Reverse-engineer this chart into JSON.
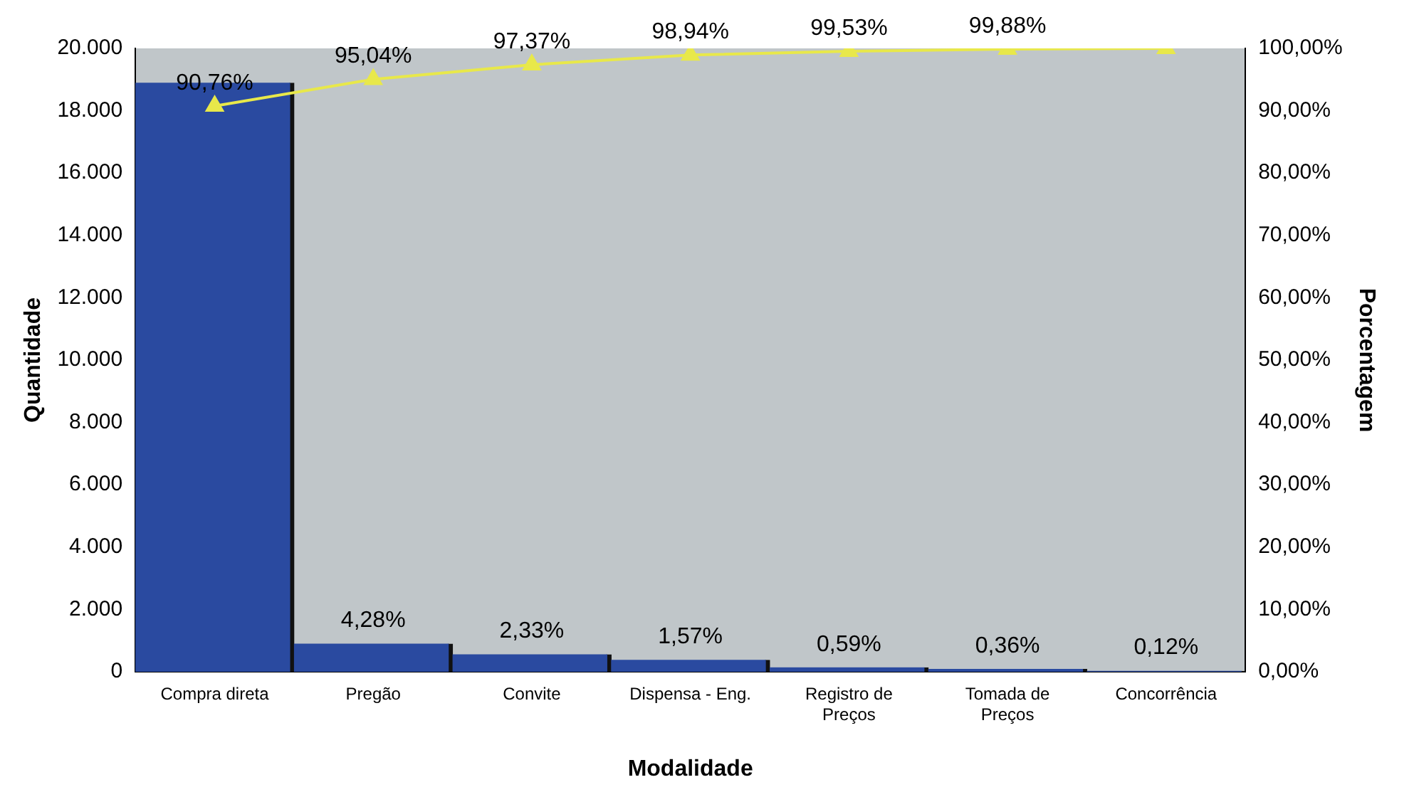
{
  "chart_data": {
    "type": "bar",
    "xlabel": "Modalidade",
    "ylabel": "Quantidade",
    "y2label": "Porcentagem",
    "categories": [
      "Compra direta",
      "Pregão",
      "Convite",
      "Dispensa - Eng.",
      "Registro de Preços",
      "Tomada de Preços",
      "Concorrência"
    ],
    "series": [
      {
        "color": "#2a4aa0",
        "values": [
          18900,
          900,
          560,
          380,
          140,
          90,
          30
        ]
      },
      {
        "type": "line",
        "axis": "y2",
        "color": "#e8e84a",
        "marker": "triangle",
        "values": [
          90.76,
          95.04,
          97.37,
          98.94,
          99.53,
          99.88,
          100
        ],
        "value_labels": [
          "90,76%",
          "95,04%",
          "97,37%",
          "98,94%",
          "99,53%",
          "99,88%",
          null
        ]
      }
    ],
    "annotations": [
      {
        "text": "4,28%",
        "x": "Pregão",
        "y": 900
      },
      {
        "text": "2,33%",
        "x": "Convite",
        "y": 560
      },
      {
        "text": "1,57%",
        "x": "Dispensa - Eng.",
        "y": 380
      },
      {
        "text": "0,59%",
        "x": "Registro de Preços",
        "y": 140
      },
      {
        "text": "0,36%",
        "x": "Tomada de Preços",
        "y": 90
      },
      {
        "text": "0,12%",
        "x": "Concorrência",
        "y": 30
      }
    ],
    "ylim": [
      0,
      20000
    ],
    "yticks": [
      {
        "value": 0,
        "label": "0"
      },
      {
        "value": 2000,
        "label": "2.000"
      },
      {
        "value": 4000,
        "label": "4.000"
      },
      {
        "value": 6000,
        "label": "6.000"
      },
      {
        "value": 8000,
        "label": "8.000"
      },
      {
        "value": 10000,
        "label": "10.000"
      },
      {
        "value": 12000,
        "label": "12.000"
      },
      {
        "value": 14000,
        "label": "14.000"
      },
      {
        "value": 16000,
        "label": "16.000"
      },
      {
        "value": 18000,
        "label": "18.000"
      },
      {
        "value": 20000,
        "label": "20.000"
      }
    ],
    "y2lim": [
      0,
      100
    ],
    "y2ticks": [
      {
        "value": 0,
        "label": "0,00%"
      },
      {
        "value": 10,
        "label": "10,00%"
      },
      {
        "value": 20,
        "label": "20,00%"
      },
      {
        "value": 30,
        "label": "30,00%"
      },
      {
        "value": 40,
        "label": "40,00%"
      },
      {
        "value": 50,
        "label": "50,00%"
      },
      {
        "value": 60,
        "label": "60,00%"
      },
      {
        "value": 70,
        "label": "70,00%"
      },
      {
        "value": 80,
        "label": "80,00%"
      },
      {
        "value": 90,
        "label": "90,00%"
      },
      {
        "value": 100,
        "label": "100,00%"
      }
    ],
    "grid": false,
    "legend": false
  }
}
